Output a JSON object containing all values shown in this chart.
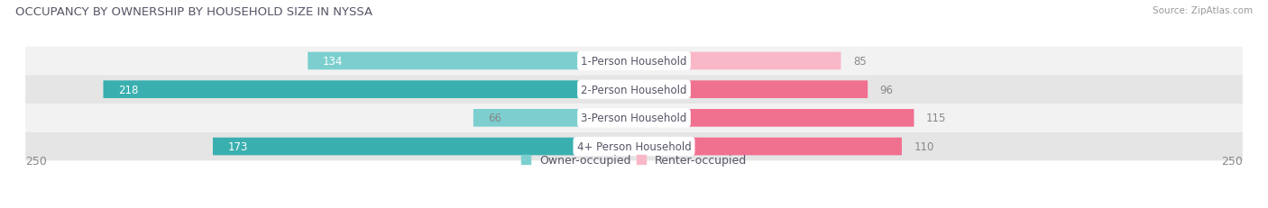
{
  "title": "OCCUPANCY BY OWNERSHIP BY HOUSEHOLD SIZE IN NYSSA",
  "source": "Source: ZipAtlas.com",
  "categories": [
    "1-Person Household",
    "2-Person Household",
    "3-Person Household",
    "4+ Person Household"
  ],
  "owner_values": [
    134,
    218,
    66,
    173
  ],
  "renter_values": [
    85,
    96,
    115,
    110
  ],
  "max_scale": 250,
  "owner_color_light": "#7DCFCF",
  "owner_color_dark": "#3AAFAF",
  "renter_color_light": "#F9B8C8",
  "renter_color_dark": "#F07090",
  "row_bg_odd": "#F2F2F2",
  "row_bg_even": "#E5E5E5",
  "label_text_color": "#555566",
  "value_inside_color": "#FFFFFF",
  "value_outside_color": "#888888",
  "title_color": "#555566",
  "source_color": "#999999",
  "title_fontsize": 9.5,
  "label_fontsize": 8.5,
  "value_fontsize": 8.5,
  "axis_label_fontsize": 9,
  "legend_fontsize": 9,
  "background_color": "#FFFFFF"
}
